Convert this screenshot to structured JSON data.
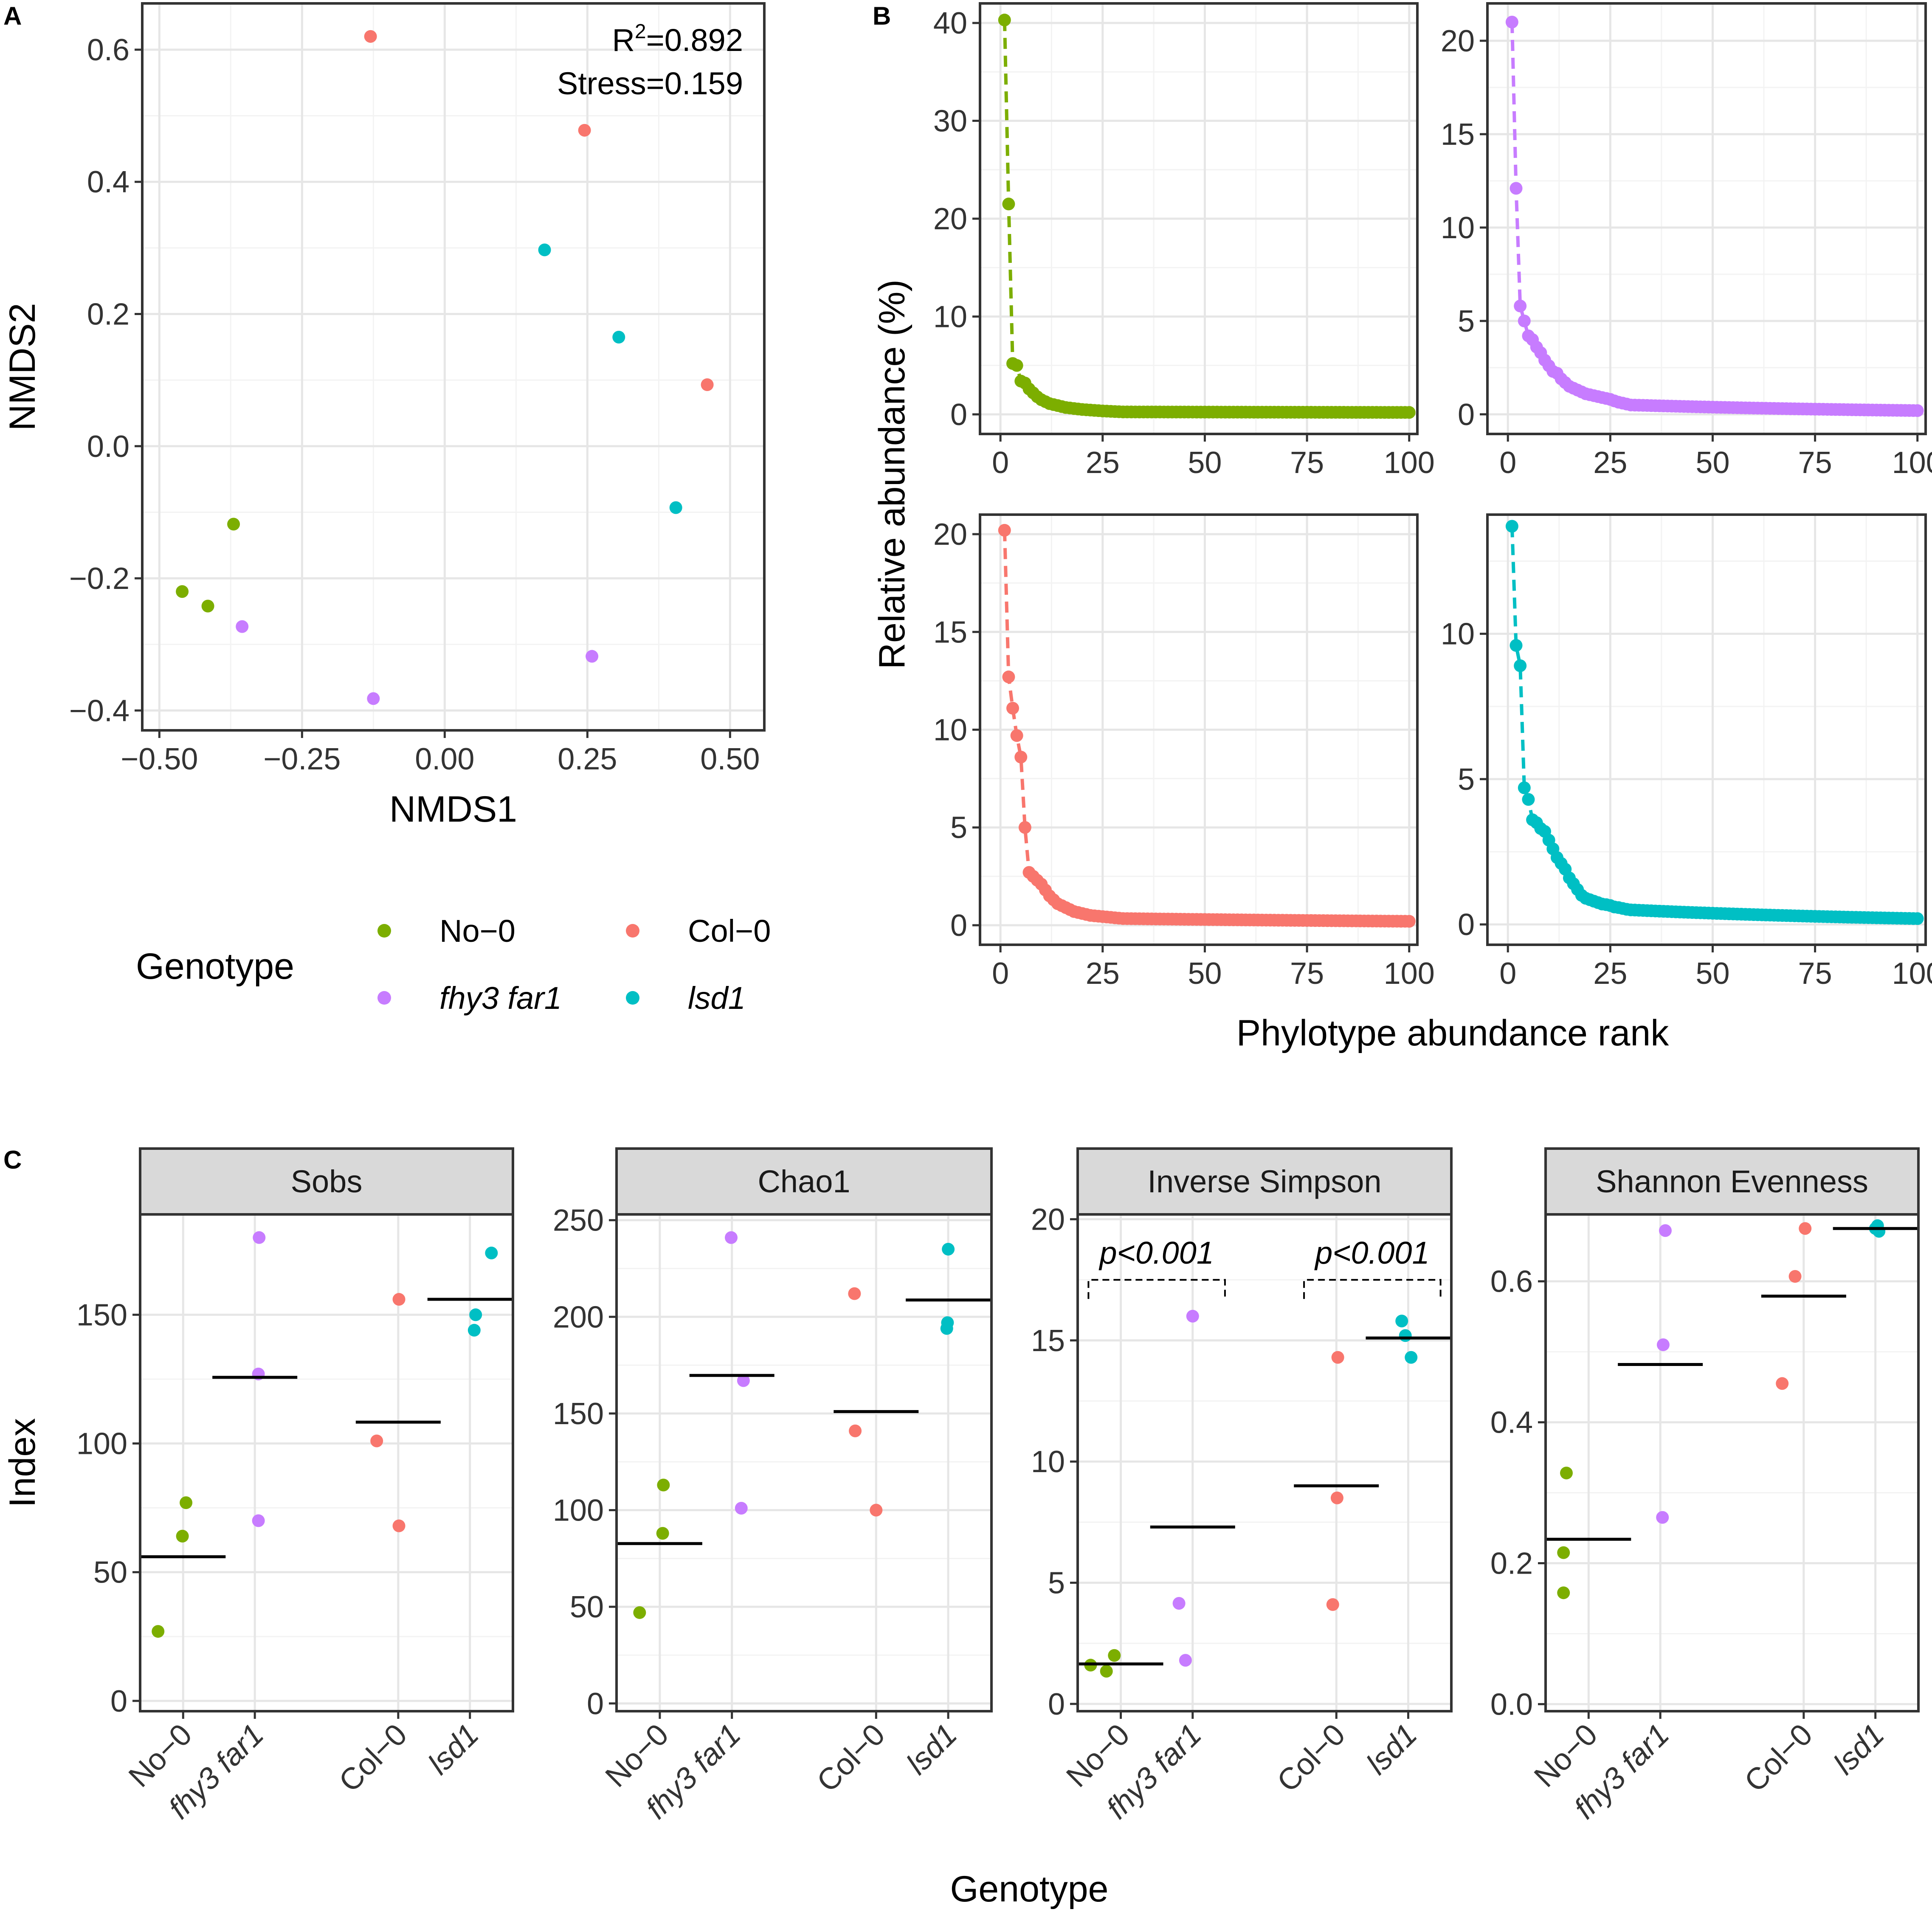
{
  "colors": {
    "No-0": "#7CAE00",
    "Col-0": "#F8766D",
    "fhy3 far1": "#C77CFF",
    "lsd1": "#00BFC4",
    "grid_major": "#e6e6e6",
    "grid_minor": "#f3f3f3",
    "strip_fill": "#d9d9d9",
    "text": "#333333",
    "axis_title": "#000000"
  },
  "panel_labels": {
    "a": "A",
    "b": "B",
    "c": "C"
  },
  "chart_data": [
    {
      "id": "nmds",
      "type": "scatter",
      "title": "",
      "xlabel": "NMDS1",
      "ylabel": "NMDS2",
      "xlim": [
        -0.53,
        0.56
      ],
      "ylim": [
        -0.43,
        0.67
      ],
      "xticks": [
        -0.5,
        -0.25,
        0.0,
        0.25,
        0.5
      ],
      "xtick_labels": [
        "−0.50",
        "−0.25",
        "0.00",
        "0.25",
        "0.50"
      ],
      "yticks": [
        -0.4,
        -0.2,
        0.0,
        0.2,
        0.4,
        0.6
      ],
      "ytick_labels": [
        "−0.4",
        "−0.2",
        "0.0",
        "0.2",
        "0.4",
        "0.6"
      ],
      "annotation_r2": "R",
      "annotation_r2_sup": "2",
      "annotation_r2_value": "=0.892",
      "annotation_stress": "Stress=0.159",
      "series": [
        {
          "name": "No-0",
          "points": [
            [
              -0.46,
              -0.22
            ],
            [
              -0.415,
              -0.242
            ],
            [
              -0.37,
              -0.118
            ]
          ]
        },
        {
          "name": "Col-0",
          "points": [
            [
              -0.13,
              0.62
            ],
            [
              0.245,
              0.478
            ],
            [
              0.46,
              0.093
            ]
          ]
        },
        {
          "name": "fhy3 far1",
          "points": [
            [
              -0.355,
              -0.273
            ],
            [
              -0.125,
              -0.382
            ],
            [
              0.258,
              -0.318
            ]
          ]
        },
        {
          "name": "lsd1",
          "points": [
            [
              0.175,
              0.297
            ],
            [
              0.305,
              0.165
            ],
            [
              0.405,
              -0.093
            ]
          ]
        }
      ]
    },
    {
      "id": "rank_abundance",
      "type": "line",
      "xlabel": "Phylotype abundance rank",
      "ylabel": "Relative abundance (%)",
      "xticks": [
        0,
        25,
        50,
        75,
        100
      ],
      "xtick_labels": [
        "0",
        "25",
        "50",
        "75",
        "100"
      ],
      "panels": [
        {
          "name": "No-0",
          "ylim": [
            -2,
            42
          ],
          "yticks": [
            0,
            10,
            20,
            30,
            40
          ],
          "ytick_labels": [
            "0",
            "10",
            "20",
            "30",
            "40"
          ],
          "values": [
            40.3,
            21.5,
            5.2,
            5.0,
            3.4,
            3.2,
            2.6,
            2.2,
            1.8,
            1.5,
            1.3,
            1.1,
            1.0,
            0.9,
            0.8,
            0.7,
            0.65,
            0.6,
            0.55,
            0.5,
            0.47,
            0.44,
            0.41,
            0.38,
            0.35,
            0.33,
            0.31,
            0.29,
            0.27,
            0.25
          ]
        },
        {
          "name": "fhy3 far1",
          "ylim": [
            -1.05,
            22
          ],
          "yticks": [
            0,
            5,
            10,
            15,
            20
          ],
          "ytick_labels": [
            "0",
            "5",
            "10",
            "15",
            "20"
          ],
          "values": [
            21.0,
            12.1,
            5.8,
            5.0,
            4.2,
            4.0,
            3.6,
            3.3,
            2.9,
            2.6,
            2.3,
            2.2,
            1.9,
            1.7,
            1.5,
            1.4,
            1.3,
            1.2,
            1.1,
            1.05,
            1.0,
            0.95,
            0.9,
            0.85,
            0.8,
            0.72,
            0.65,
            0.6,
            0.55,
            0.5
          ]
        },
        {
          "name": "Col-0",
          "ylim": [
            -1.0,
            21
          ],
          "yticks": [
            0,
            5,
            10,
            15,
            20
          ],
          "ytick_labels": [
            "0",
            "5",
            "10",
            "15",
            "20"
          ],
          "values": [
            20.2,
            12.7,
            11.1,
            9.7,
            8.6,
            5.0,
            2.7,
            2.5,
            2.3,
            2.1,
            1.8,
            1.5,
            1.3,
            1.1,
            1.0,
            0.9,
            0.8,
            0.7,
            0.65,
            0.6,
            0.55,
            0.5,
            0.48,
            0.46,
            0.44,
            0.42,
            0.4,
            0.38,
            0.36,
            0.34
          ]
        },
        {
          "name": "lsd1",
          "ylim": [
            -0.7,
            14.1
          ],
          "yticks": [
            0,
            5,
            10
          ],
          "ytick_labels": [
            "0",
            "5",
            "10"
          ],
          "values": [
            13.7,
            9.6,
            8.9,
            4.7,
            4.3,
            3.6,
            3.5,
            3.3,
            3.2,
            2.9,
            2.6,
            2.3,
            2.1,
            1.9,
            1.6,
            1.4,
            1.2,
            1.0,
            0.9,
            0.85,
            0.8,
            0.75,
            0.7,
            0.68,
            0.65,
            0.6,
            0.58,
            0.55,
            0.52,
            0.5
          ]
        }
      ]
    },
    {
      "id": "alpha_diversity",
      "type": "scatter",
      "xlabel": "Genotype",
      "ylabel": "Index",
      "categories": [
        "No−0",
        "fhy3 far1",
        "Col−0",
        "lsd1"
      ],
      "category_keys": [
        "No-0",
        "fhy3 far1",
        "Col-0",
        "lsd1"
      ],
      "category_positions": [
        1,
        2,
        4,
        5
      ],
      "legend_title": "Genotype",
      "legend_labels": [
        "No−0",
        "Col−0",
        "fhy3 far1",
        "lsd1"
      ],
      "legend_keys": [
        "No-0",
        "Col-0",
        "fhy3 far1",
        "lsd1"
      ],
      "facets": [
        {
          "name": "Sobs",
          "ylim": [
            -4,
            189
          ],
          "yticks": [
            0,
            50,
            100,
            150
          ],
          "ytick_labels": [
            "0",
            "50",
            "100",
            "150"
          ],
          "points": {
            "No-0": [
              [
                0.65,
                27
              ],
              [
                0.99,
                64
              ],
              [
                1.04,
                77
              ]
            ],
            "fhy3 far1": [
              [
                2.06,
                180
              ],
              [
                2.05,
                127
              ],
              [
                2.05,
                70
              ]
            ],
            "Col-0": [
              [
                3.7,
                101
              ],
              [
                4.01,
                156
              ],
              [
                4.01,
                68
              ]
            ],
            "lsd1": [
              [
                5.3,
                174
              ],
              [
                5.08,
                150
              ],
              [
                5.06,
                144
              ]
            ]
          },
          "means": [
            56,
            125.7,
            108.3,
            156
          ],
          "sig": []
        },
        {
          "name": "Chao1",
          "ylim": [
            -4,
            253
          ],
          "yticks": [
            0,
            50,
            100,
            150,
            200,
            250
          ],
          "ytick_labels": [
            "0",
            "50",
            "100",
            "150",
            "200",
            "250"
          ],
          "points": {
            "No-0": [
              [
                0.72,
                47
              ],
              [
                1.04,
                88
              ],
              [
                1.05,
                113
              ]
            ],
            "fhy3 far1": [
              [
                1.99,
                241
              ],
              [
                2.16,
                167
              ],
              [
                2.13,
                101
              ]
            ],
            "Col-0": [
              [
                3.7,
                212
              ],
              [
                3.71,
                141
              ],
              [
                4.0,
                100
              ]
            ],
            "lsd1": [
              [
                5.0,
                235
              ],
              [
                4.99,
                197
              ],
              [
                4.98,
                194
              ]
            ]
          },
          "means": [
            82.7,
            169.7,
            151,
            208.7
          ],
          "sig": []
        },
        {
          "name": "Inverse Simpson",
          "ylim": [
            -0.3,
            20.2
          ],
          "yticks": [
            0,
            5,
            10,
            15,
            20
          ],
          "ytick_labels": [
            "0",
            "5",
            "10",
            "15",
            "20"
          ],
          "points": {
            "No-0": [
              [
                0.58,
                1.6
              ],
              [
                0.8,
                1.35
              ],
              [
                0.91,
                2.0
              ]
            ],
            "fhy3 far1": [
              [
                1.81,
                4.15
              ],
              [
                1.9,
                1.8
              ],
              [
                2.0,
                16.0
              ]
            ],
            "Col-0": [
              [
                3.95,
                4.1
              ],
              [
                4.01,
                8.5
              ],
              [
                4.02,
                14.3
              ]
            ],
            "lsd1": [
              [
                4.91,
                15.8
              ],
              [
                4.96,
                15.2
              ],
              [
                5.04,
                14.3
              ]
            ]
          },
          "means": [
            1.65,
            7.3,
            9.0,
            15.1
          ],
          "sig": [
            {
              "label": "p<0.001",
              "from": 0.55,
              "to": 2.45,
              "y": 17.5
            },
            {
              "label": "p<0.001",
              "from": 3.55,
              "to": 5.45,
              "y": 17.5
            }
          ]
        },
        {
          "name": "Shannon Evenness",
          "ylim": [
            -0.01,
            0.695
          ],
          "yticks": [
            0.0,
            0.2,
            0.4,
            0.6
          ],
          "ytick_labels": [
            "0.0",
            "0.2",
            "0.4",
            "0.6"
          ],
          "points": {
            "No-0": [
              [
                0.65,
                0.158
              ],
              [
                0.65,
                0.215
              ],
              [
                0.69,
                0.328
              ]
            ],
            "fhy3 far1": [
              [
                2.07,
                0.672
              ],
              [
                2.04,
                0.51
              ],
              [
                2.03,
                0.265
              ]
            ],
            "Col-0": [
              [
                3.7,
                0.455
              ],
              [
                3.88,
                0.607
              ],
              [
                4.02,
                0.675
              ]
            ],
            "lsd1": [
              [
                5.0,
                0.675
              ],
              [
                5.03,
                0.679
              ],
              [
                5.05,
                0.671
              ]
            ]
          },
          "means": [
            0.234,
            0.482,
            0.579,
            0.675
          ],
          "sig": []
        }
      ]
    }
  ]
}
